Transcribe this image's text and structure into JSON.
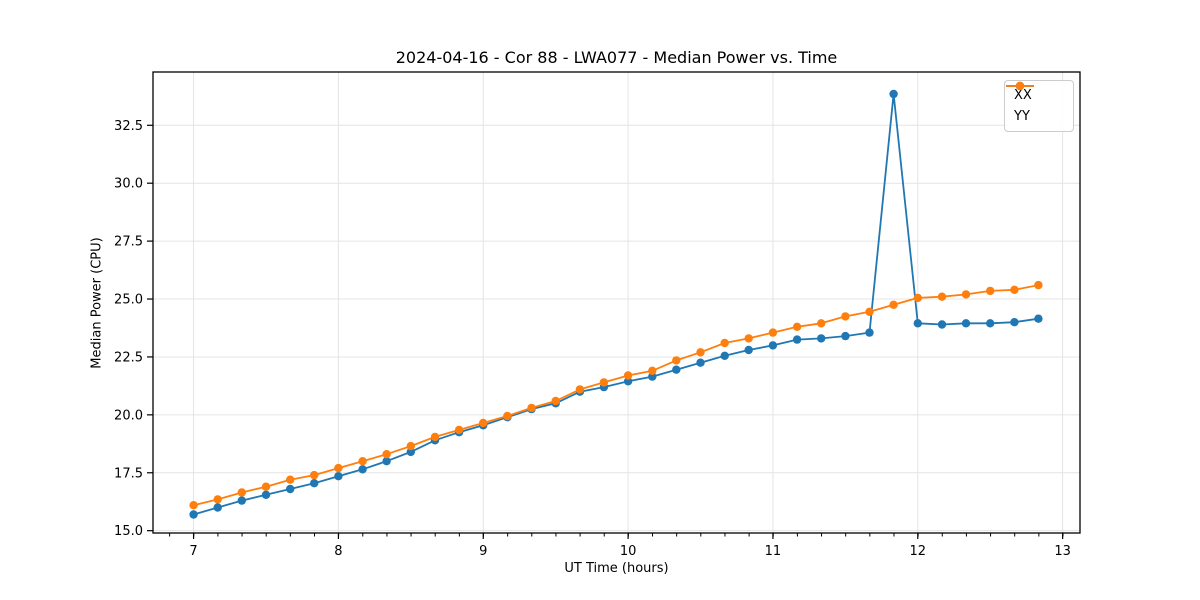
{
  "chart_data": {
    "type": "line",
    "title": "2024-04-16 - Cor 88 - LWA077 - Median Power vs. Time",
    "xlabel": "UT Time (hours)",
    "ylabel": "Median Power (CPU)",
    "x": [
      7.0,
      7.167,
      7.333,
      7.5,
      7.667,
      7.833,
      8.0,
      8.167,
      8.333,
      8.5,
      8.667,
      8.833,
      9.0,
      9.167,
      9.333,
      9.5,
      9.667,
      9.833,
      10.0,
      10.167,
      10.333,
      10.5,
      10.667,
      10.833,
      11.0,
      11.167,
      11.333,
      11.5,
      11.667,
      11.833,
      12.0,
      12.167,
      12.333,
      12.5,
      12.667,
      12.833
    ],
    "series": [
      {
        "name": "XX",
        "color": "#1f77b4",
        "values": [
          15.7,
          16.0,
          16.3,
          16.55,
          16.8,
          17.05,
          17.35,
          17.65,
          18.0,
          18.4,
          18.9,
          19.25,
          19.55,
          19.9,
          20.25,
          20.5,
          21.0,
          21.2,
          21.45,
          21.65,
          21.95,
          22.25,
          22.55,
          22.8,
          23.0,
          23.25,
          23.3,
          23.4,
          23.55,
          33.85,
          23.95,
          23.9,
          23.95,
          23.95,
          24.0,
          24.15
        ]
      },
      {
        "name": "YY",
        "color": "#ff7f0e",
        "values": [
          16.1,
          16.35,
          16.65,
          16.9,
          17.2,
          17.4,
          17.7,
          18.0,
          18.3,
          18.65,
          19.05,
          19.35,
          19.65,
          19.95,
          20.3,
          20.6,
          21.1,
          21.4,
          21.7,
          21.9,
          22.35,
          22.7,
          23.1,
          23.3,
          23.55,
          23.8,
          23.95,
          24.25,
          24.45,
          24.75,
          25.05,
          25.1,
          25.2,
          25.35,
          25.4,
          25.6
        ]
      }
    ],
    "xlim": [
      6.72,
      13.12
    ],
    "ylim": [
      14.9,
      34.8
    ],
    "xticks": {
      "values": [
        7,
        8,
        9,
        10,
        11,
        12,
        13
      ],
      "labels": [
        "7",
        "8",
        "9",
        "10",
        "11",
        "12",
        "13"
      ]
    },
    "yticks": {
      "values": [
        15.0,
        17.5,
        20.0,
        22.5,
        25.0,
        27.5,
        30.0,
        32.5
      ],
      "labels": [
        "15.0",
        "17.5",
        "20.0",
        "22.5",
        "25.0",
        "27.5",
        "30.0",
        "32.5"
      ]
    },
    "x_minor_step": 0.1667,
    "grid": true,
    "legend": {
      "position": "upper right"
    },
    "marker": "circle"
  },
  "colors": {
    "series_xx": "#1f77b4",
    "series_yy": "#ff7f0e",
    "grid": "#e4e4e4",
    "spine": "#000000",
    "tick_label": "#000000",
    "background": "#ffffff",
    "legend_border": "#cccccc"
  }
}
